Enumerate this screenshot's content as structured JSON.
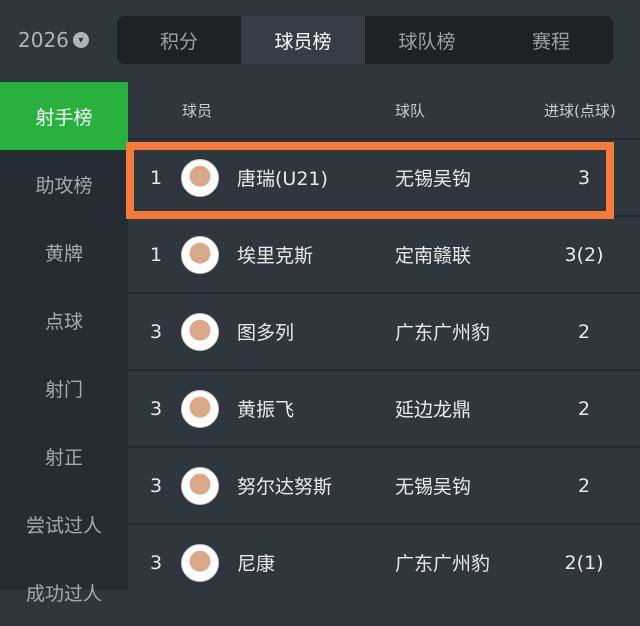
{
  "season": {
    "year": "2026"
  },
  "tabs": [
    {
      "label": "积分"
    },
    {
      "label": "球员榜",
      "active": true
    },
    {
      "label": "球队榜"
    },
    {
      "label": "赛程"
    }
  ],
  "sidebar": {
    "items": [
      {
        "label": "射手榜",
        "active": true
      },
      {
        "label": "助攻榜"
      },
      {
        "label": "黄牌"
      },
      {
        "label": "点球"
      },
      {
        "label": "射门"
      },
      {
        "label": "射正"
      },
      {
        "label": "尝试过人"
      },
      {
        "label": "成功过人"
      }
    ]
  },
  "table": {
    "headers": {
      "player": "球员",
      "team": "球队",
      "goals": "进球(点球)"
    },
    "rows": [
      {
        "rank": "1",
        "name": "唐瑞(U21)",
        "team": "无锡吴钩",
        "goals": "3",
        "highlighted": true
      },
      {
        "rank": "1",
        "name": "埃里克斯",
        "team": "定南赣联",
        "goals": "3(2)"
      },
      {
        "rank": "3",
        "name": "图多列",
        "team": "广东广州豹",
        "goals": "2"
      },
      {
        "rank": "3",
        "name": "黄振飞",
        "team": "延边龙鼎",
        "goals": "2"
      },
      {
        "rank": "3",
        "name": "努尔达努斯",
        "team": "无锡吴钩",
        "goals": "2"
      },
      {
        "rank": "3",
        "name": "尼康",
        "team": "广东广州豹",
        "goals": "2(1)"
      }
    ]
  },
  "colors": {
    "accent": "#28b13f",
    "highlight": "#f47b3c"
  }
}
